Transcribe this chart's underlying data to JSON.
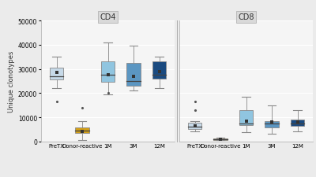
{
  "title_cd4": "CD4",
  "title_cd8": "CD8",
  "ylabel": "Unique clonotypes",
  "categories": [
    "PreTX",
    "Donor-reactive",
    "1M",
    "3M",
    "12M"
  ],
  "ylim": [
    0,
    50000
  ],
  "yticks": [
    0,
    10000,
    20000,
    30000,
    40000,
    50000
  ],
  "ytick_labels": [
    "0",
    "10000",
    "20000",
    "30000",
    "40000",
    "50000"
  ],
  "background_color": "#ebebeb",
  "panel_bg": "#f5f5f5",
  "grid_color": "#ffffff",
  "facet_title_bg": "#d9d9d9",
  "facet_title_color": "#333333",
  "cd4": {
    "PreTX": {
      "q1": 25500,
      "median": 27000,
      "q3": 30500,
      "whisker_low": 22000,
      "whisker_high": 35000,
      "mean": 28500,
      "outliers": [
        16500
      ],
      "color": "#c6d9e8",
      "edgecolor": "#888888"
    },
    "Donor-reactive": {
      "q1": 3500,
      "median": 4500,
      "q3": 5800,
      "whisker_low": 500,
      "whisker_high": 8500,
      "mean": 4300,
      "outliers": [
        14000
      ],
      "color": "#d4a017",
      "edgecolor": "#888888"
    },
    "1M": {
      "q1": 24500,
      "median": 27500,
      "q3": 33000,
      "whisker_low": 19500,
      "whisker_high": 41000,
      "mean": 27500,
      "outliers": [
        20000
      ],
      "color": "#90c5e0",
      "edgecolor": "#888888"
    },
    "3M": {
      "q1": 23000,
      "median": 25000,
      "q3": 32500,
      "whisker_low": 21000,
      "whisker_high": 39500,
      "mean": 27000,
      "outliers": [],
      "color": "#5b96c2",
      "edgecolor": "#888888"
    },
    "12M": {
      "q1": 26000,
      "median": 27500,
      "q3": 33000,
      "whisker_low": 22000,
      "whisker_high": 35000,
      "mean": 29000,
      "outliers": [],
      "color": "#1a4a80",
      "edgecolor": "#888888"
    }
  },
  "cd8": {
    "PreTX": {
      "q1": 5200,
      "median": 6200,
      "q3": 7800,
      "whisker_low": 4200,
      "whisker_high": 8500,
      "mean": 6300,
      "outliers": [
        16500,
        13000
      ],
      "color": "#c6d9e8",
      "edgecolor": "#888888"
    },
    "Donor-reactive": {
      "q1": 700,
      "median": 950,
      "q3": 1200,
      "whisker_low": 500,
      "whisker_high": 1400,
      "mean": 950,
      "outliers": [],
      "color": "#d4a017",
      "edgecolor": "#888888"
    },
    "1M": {
      "q1": 6800,
      "median": 7500,
      "q3": 13000,
      "whisker_low": 4000,
      "whisker_high": 18500,
      "mean": 8500,
      "outliers": [],
      "color": "#90c5e0",
      "edgecolor": "#888888"
    },
    "3M": {
      "q1": 5800,
      "median": 7500,
      "q3": 8500,
      "whisker_low": 3200,
      "whisker_high": 15000,
      "mean": 8000,
      "outliers": [],
      "color": "#5b96c2",
      "edgecolor": "#888888"
    },
    "12M": {
      "q1": 6300,
      "median": 7500,
      "q3": 9200,
      "whisker_low": 4200,
      "whisker_high": 13000,
      "mean": 8000,
      "outliers": [],
      "color": "#1a4a80",
      "edgecolor": "#888888"
    }
  }
}
